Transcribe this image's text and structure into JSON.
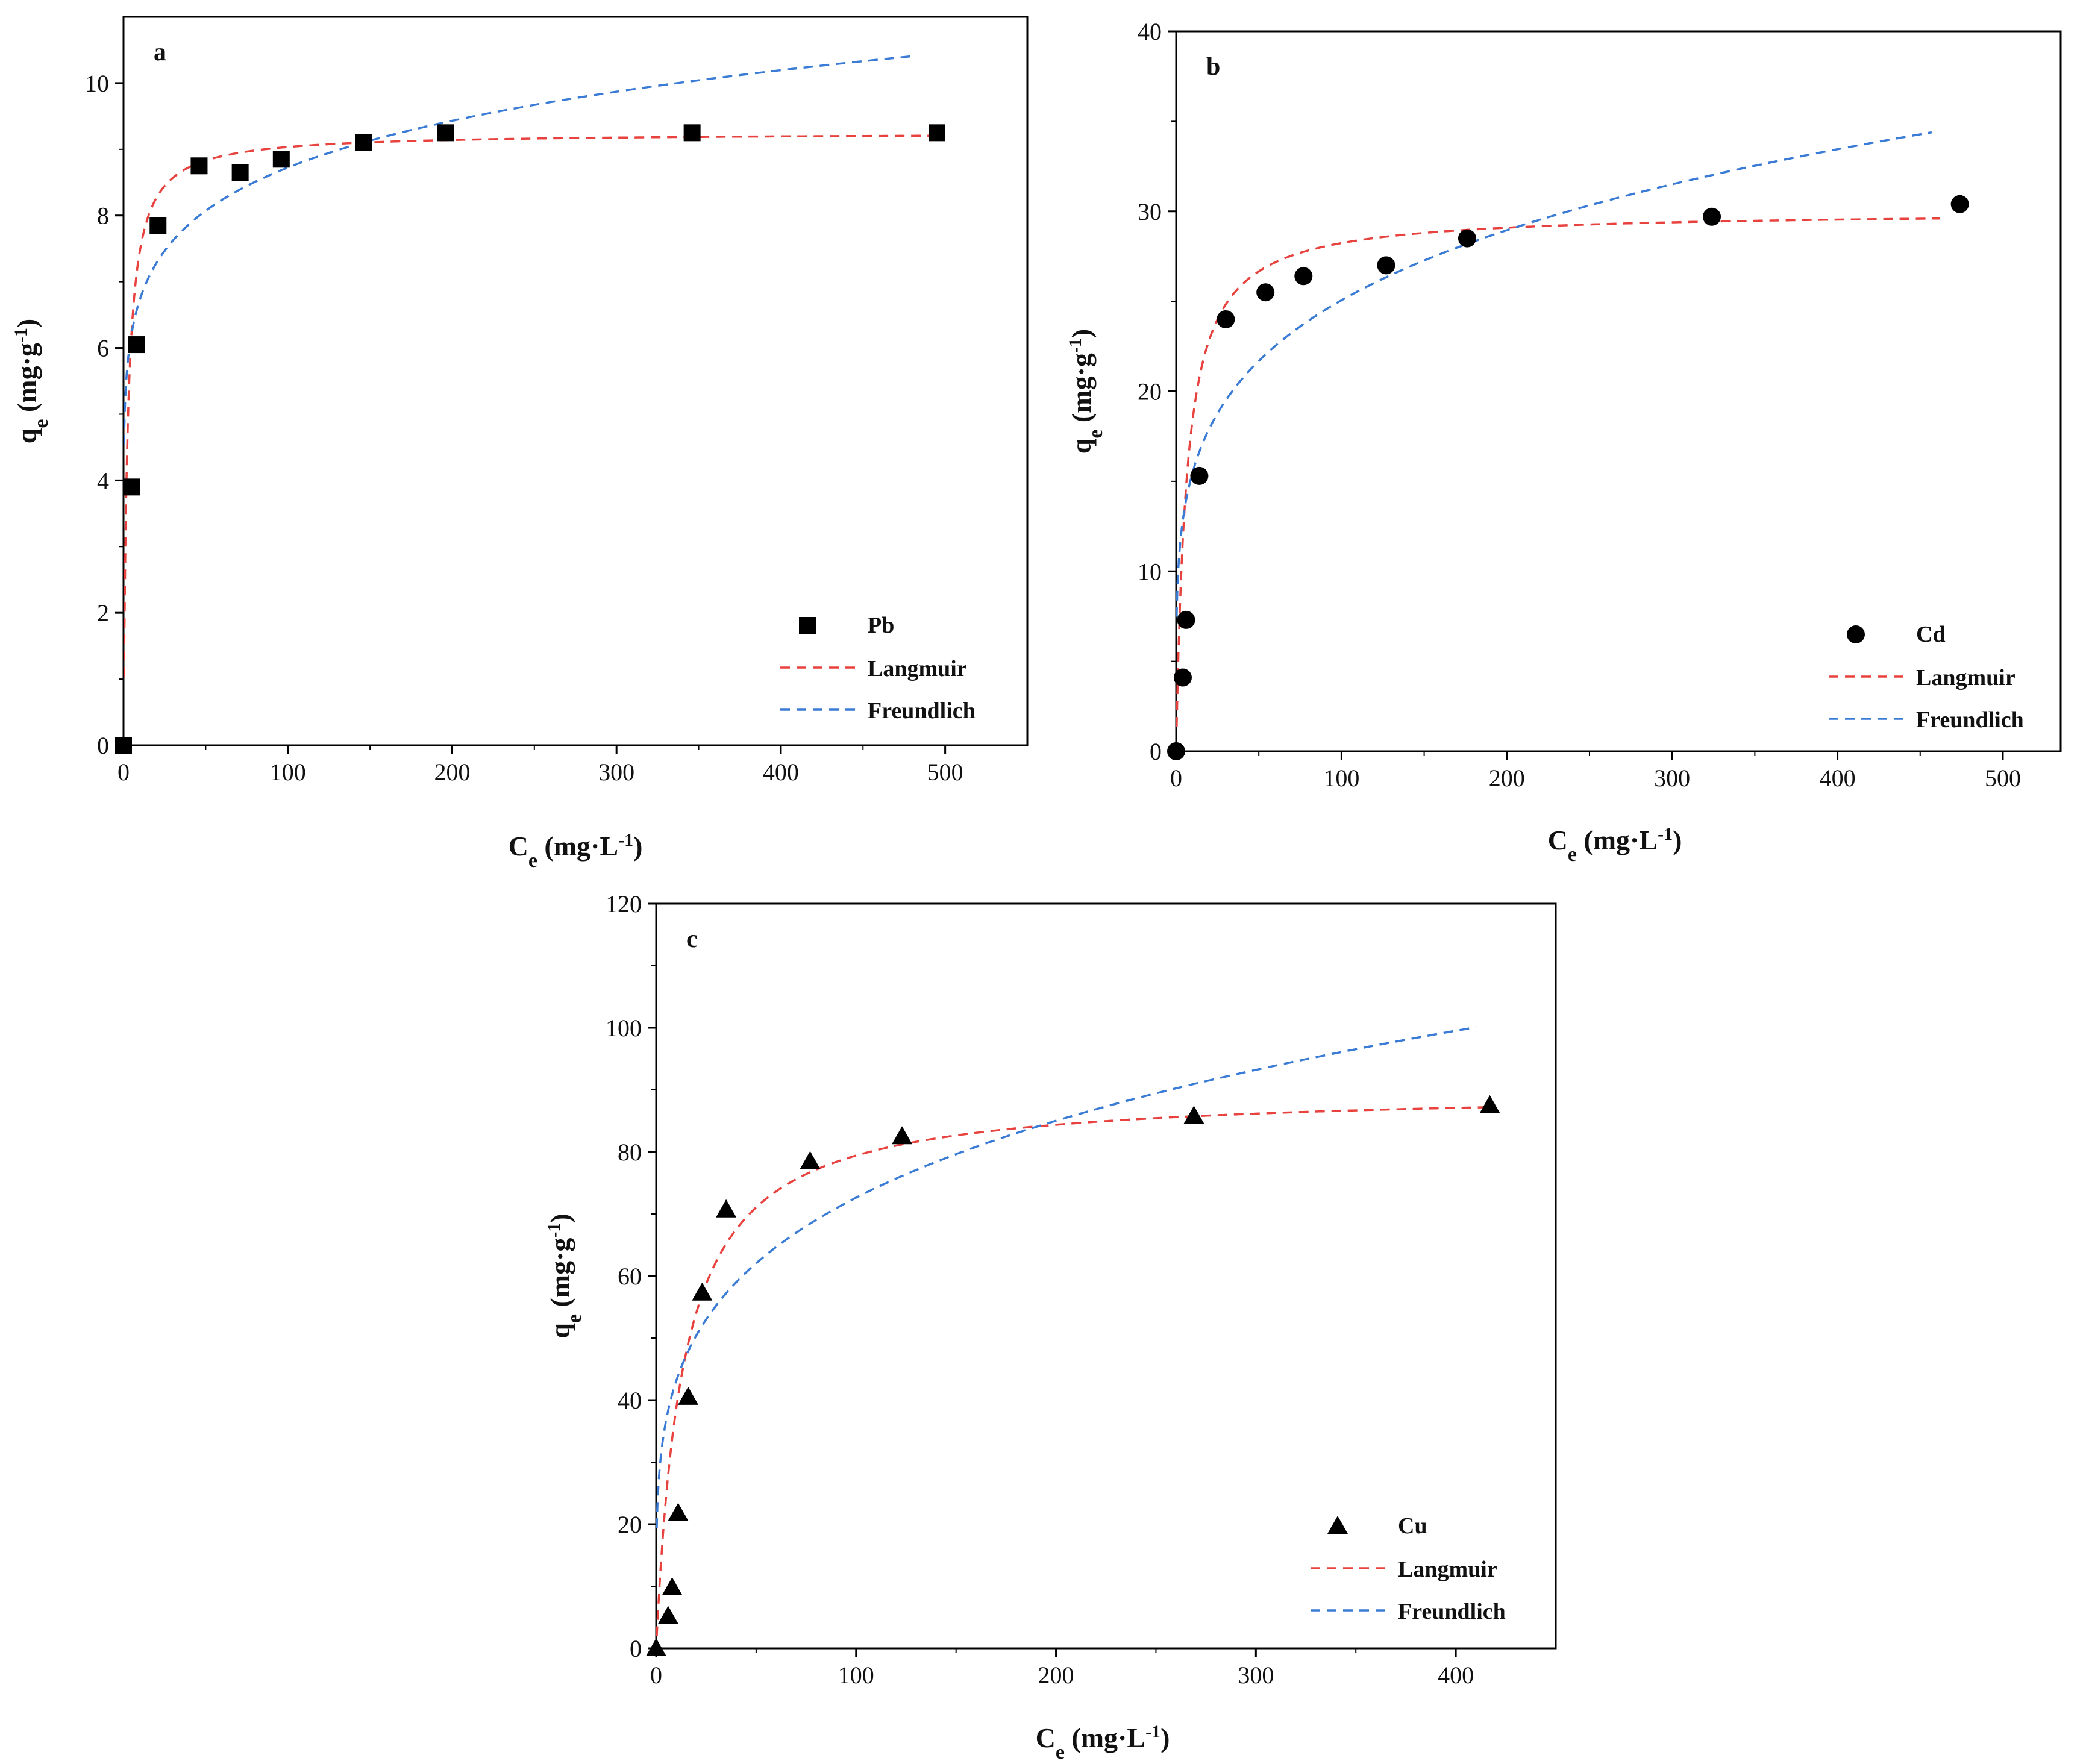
{
  "chart_data": [
    {
      "type": "scatter",
      "panel_label": "a",
      "xlabel": "C",
      "xlabel_sub": "e",
      "xlabel_unit": "(mg·L",
      "xlabel_unit_sup": "-1",
      "xlabel_unit_end": ")",
      "ylabel": "q",
      "ylabel_sub": "e",
      "ylabel_unit": "(mg·g",
      "ylabel_unit_sup": "-1",
      "ylabel_unit_end": ")",
      "xlim": [
        0,
        550
      ],
      "ylim": [
        0,
        11
      ],
      "xticks": [
        0,
        100,
        200,
        300,
        400,
        500
      ],
      "yticks": [
        0,
        2,
        4,
        6,
        8,
        10
      ],
      "marker": "square",
      "legend_position": "bottom-right",
      "legend": [
        "Pb",
        "Langmuir",
        "Freundlich"
      ],
      "points": [
        {
          "x": 0,
          "y": 0
        },
        {
          "x": 5,
          "y": 3.9
        },
        {
          "x": 8,
          "y": 6.05
        },
        {
          "x": 21,
          "y": 7.85
        },
        {
          "x": 46,
          "y": 8.75
        },
        {
          "x": 71,
          "y": 8.65
        },
        {
          "x": 96,
          "y": 8.85
        },
        {
          "x": 146,
          "y": 9.1
        },
        {
          "x": 196,
          "y": 9.25
        },
        {
          "x": 346,
          "y": 9.25
        },
        {
          "x": 495,
          "y": 9.25
        }
      ],
      "langmuir": {
        "qmax": 9.25,
        "KL": 0.42,
        "x_end": 495,
        "color": "#e8423f"
      },
      "freundlich": {
        "KF": 5.2,
        "n": 8.9,
        "x_end": 480,
        "color": "#3a7bd5"
      }
    },
    {
      "type": "scatter",
      "panel_label": "b",
      "xlabel": "C",
      "xlabel_sub": "e",
      "xlabel_unit": "(mg·L",
      "xlabel_unit_sup": "-1",
      "xlabel_unit_end": ")",
      "ylabel": "q",
      "ylabel_sub": "e",
      "ylabel_unit": "(mg·g",
      "ylabel_unit_sup": "-1",
      "ylabel_unit_end": ")",
      "xlim": [
        0,
        535
      ],
      "ylim": [
        0,
        40
      ],
      "xticks": [
        0,
        100,
        200,
        300,
        400,
        500
      ],
      "yticks": [
        0,
        10,
        20,
        30,
        40
      ],
      "marker": "circle",
      "legend_position": "bottom-right",
      "legend": [
        "Cd",
        "Langmuir",
        "Freundlich"
      ],
      "points": [
        {
          "x": 0,
          "y": 0
        },
        {
          "x": 4,
          "y": 4.1
        },
        {
          "x": 6,
          "y": 7.3
        },
        {
          "x": 14,
          "y": 15.3
        },
        {
          "x": 30,
          "y": 24.0
        },
        {
          "x": 54,
          "y": 25.5
        },
        {
          "x": 77,
          "y": 26.4
        },
        {
          "x": 127,
          "y": 27.0
        },
        {
          "x": 176,
          "y": 28.5
        },
        {
          "x": 324,
          "y": 29.7
        },
        {
          "x": 474,
          "y": 30.4
        }
      ],
      "langmuir": {
        "qmax": 30.0,
        "KL": 0.16,
        "x_end": 462,
        "color": "#e8423f"
      },
      "freundlich": {
        "KF": 9.6,
        "n": 4.8,
        "x_end": 457,
        "color": "#3a7bd5"
      }
    },
    {
      "type": "scatter",
      "panel_label": "c",
      "xlabel": "C",
      "xlabel_sub": "e",
      "xlabel_unit": "(mg·L",
      "xlabel_unit_sup": "-1",
      "xlabel_unit_end": ")",
      "ylabel": "q",
      "ylabel_sub": "e",
      "ylabel_unit": "(mg·g",
      "ylabel_unit_sup": "-1",
      "ylabel_unit_end": ")",
      "xlim": [
        0,
        450
      ],
      "ylim": [
        0,
        120
      ],
      "xticks": [
        0,
        100,
        200,
        300,
        400
      ],
      "yticks": [
        0,
        20,
        40,
        60,
        80,
        100,
        120
      ],
      "marker": "triangle",
      "legend_position": "bottom-right",
      "legend": [
        "Cu",
        "Langmuir",
        "Freundlich"
      ],
      "points": [
        {
          "x": 0,
          "y": 0
        },
        {
          "x": 6,
          "y": 5.2
        },
        {
          "x": 8,
          "y": 9.8
        },
        {
          "x": 11,
          "y": 21.8
        },
        {
          "x": 16,
          "y": 40.5
        },
        {
          "x": 23,
          "y": 57.3
        },
        {
          "x": 35,
          "y": 70.7
        },
        {
          "x": 77,
          "y": 78.5
        },
        {
          "x": 123,
          "y": 82.5
        },
        {
          "x": 269,
          "y": 85.8
        },
        {
          "x": 417,
          "y": 87.5
        }
      ],
      "langmuir": {
        "qmax": 90.0,
        "KL": 0.075,
        "x_end": 415,
        "color": "#e8423f"
      },
      "freundlich": {
        "KF": 25.5,
        "n": 4.4,
        "x_end": 410,
        "color": "#3a7bd5"
      }
    }
  ]
}
